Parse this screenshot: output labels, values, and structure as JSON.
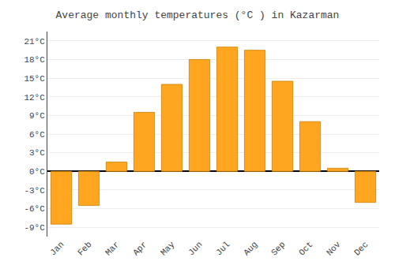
{
  "chart_data": {
    "type": "bar",
    "title": "Average monthly temperatures (°C ) in Kazarman",
    "categories": [
      "Jan",
      "Feb",
      "Mar",
      "Apr",
      "May",
      "Jun",
      "Jul",
      "Aug",
      "Sep",
      "Oct",
      "Nov",
      "Dec"
    ],
    "values": [
      -8.5,
      -5.5,
      1.5,
      9.5,
      14.0,
      18.0,
      20.0,
      19.5,
      14.5,
      8.0,
      0.5,
      -5.0
    ],
    "color": "#FFA520",
    "ylim": [
      -10.5,
      22.5
    ],
    "yticks": [
      {
        "value": -9,
        "label": "-9°C"
      },
      {
        "value": -6,
        "label": "-6°C"
      },
      {
        "value": -3,
        "label": "-3°C"
      },
      {
        "value": 0,
        "label": "0°C"
      },
      {
        "value": 3,
        "label": "3°C"
      },
      {
        "value": 6,
        "label": "6°C"
      },
      {
        "value": 9,
        "label": "9°C"
      },
      {
        "value": 12,
        "label": "12°C"
      },
      {
        "value": 15,
        "label": "15°C"
      },
      {
        "value": 18,
        "label": "18°C"
      },
      {
        "value": 21,
        "label": "21°C"
      }
    ],
    "grid": true
  }
}
